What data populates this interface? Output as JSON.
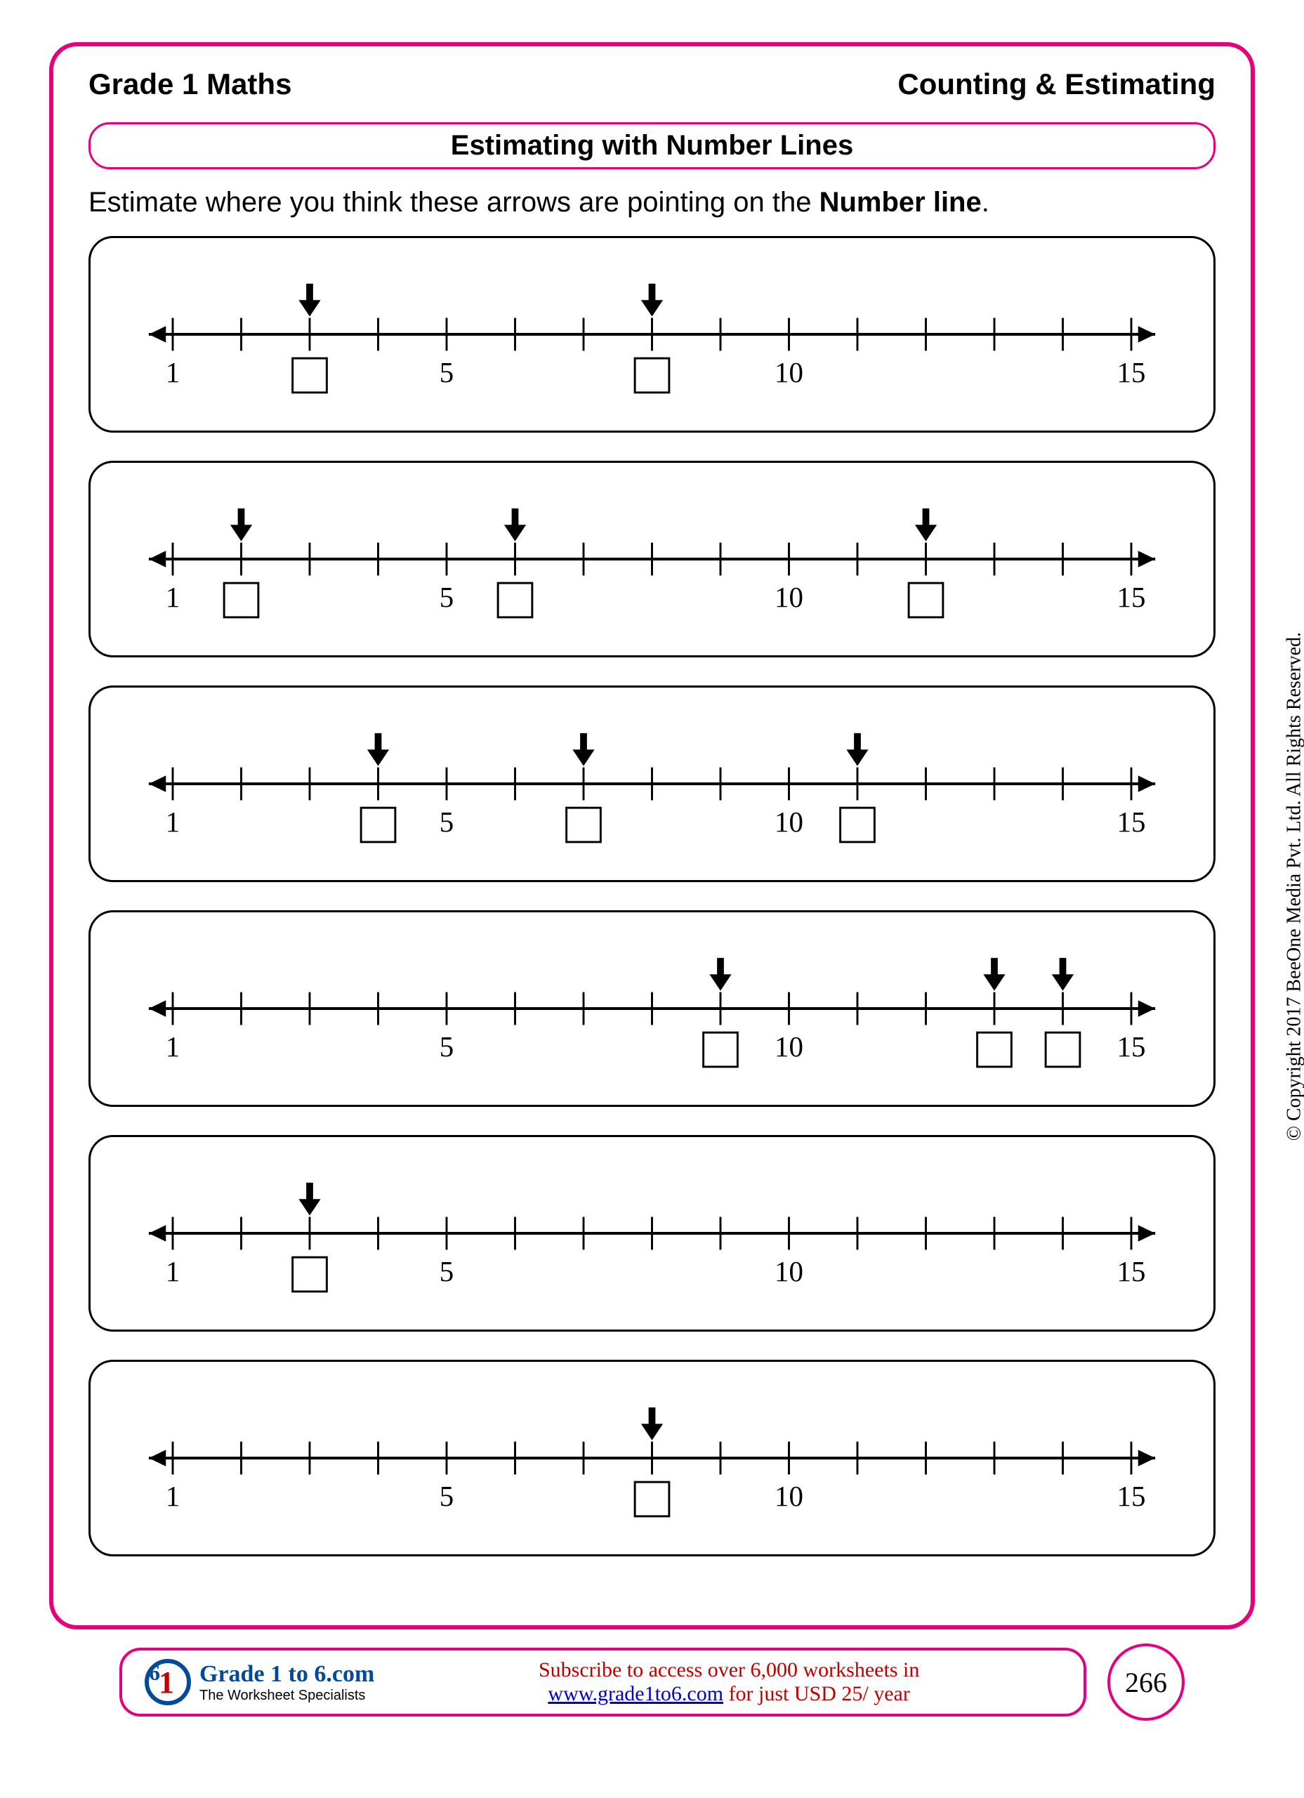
{
  "header": {
    "left": "Grade 1 Maths",
    "right": "Counting & Estimating"
  },
  "title": "Estimating with Number Lines",
  "instruction_pre": "Estimate where you think these arrows are pointing on the ",
  "instruction_bold": "Number line",
  "instruction_post": ".",
  "numberline": {
    "start": 1,
    "end": 15,
    "labeled_ticks": [
      1,
      5,
      10,
      15
    ],
    "line_color": "#000000",
    "tick_height": 24,
    "arrow_size": 18,
    "label_fontsize": 42,
    "box_size": 50,
    "box_stroke": "#000000",
    "pointer_arrow_height": 50
  },
  "problems": [
    {
      "arrows_at": [
        3,
        8
      ],
      "boxes_at": [
        3,
        8
      ]
    },
    {
      "arrows_at": [
        2,
        6,
        12
      ],
      "boxes_at": [
        2,
        6,
        12
      ]
    },
    {
      "arrows_at": [
        4,
        7,
        11
      ],
      "boxes_at": [
        4,
        7,
        11
      ]
    },
    {
      "arrows_at": [
        9,
        13,
        14
      ],
      "boxes_at": [
        9,
        13,
        14
      ]
    },
    {
      "arrows_at": [
        3
      ],
      "boxes_at": [
        3
      ]
    },
    {
      "arrows_at": [
        8
      ],
      "boxes_at": [
        8
      ]
    }
  ],
  "copyright": "© Copyright 2017 BeeOne Media Pvt. Ltd. All Rights Reserved.",
  "footer": {
    "logo_main": "Grade 1 to 6.com",
    "logo_sub": "The Worksheet Specialists",
    "msg_line1": "Subscribe to access over 6,000 worksheets in",
    "link": "www.grade1to6.com",
    "msg_line2_post": " for just USD 25/ year",
    "page_number": "266"
  },
  "colors": {
    "accent": "#e6007e",
    "text": "#000000",
    "footer_text": "#c00000",
    "link": "#0000cc",
    "logo": "#004a99"
  }
}
